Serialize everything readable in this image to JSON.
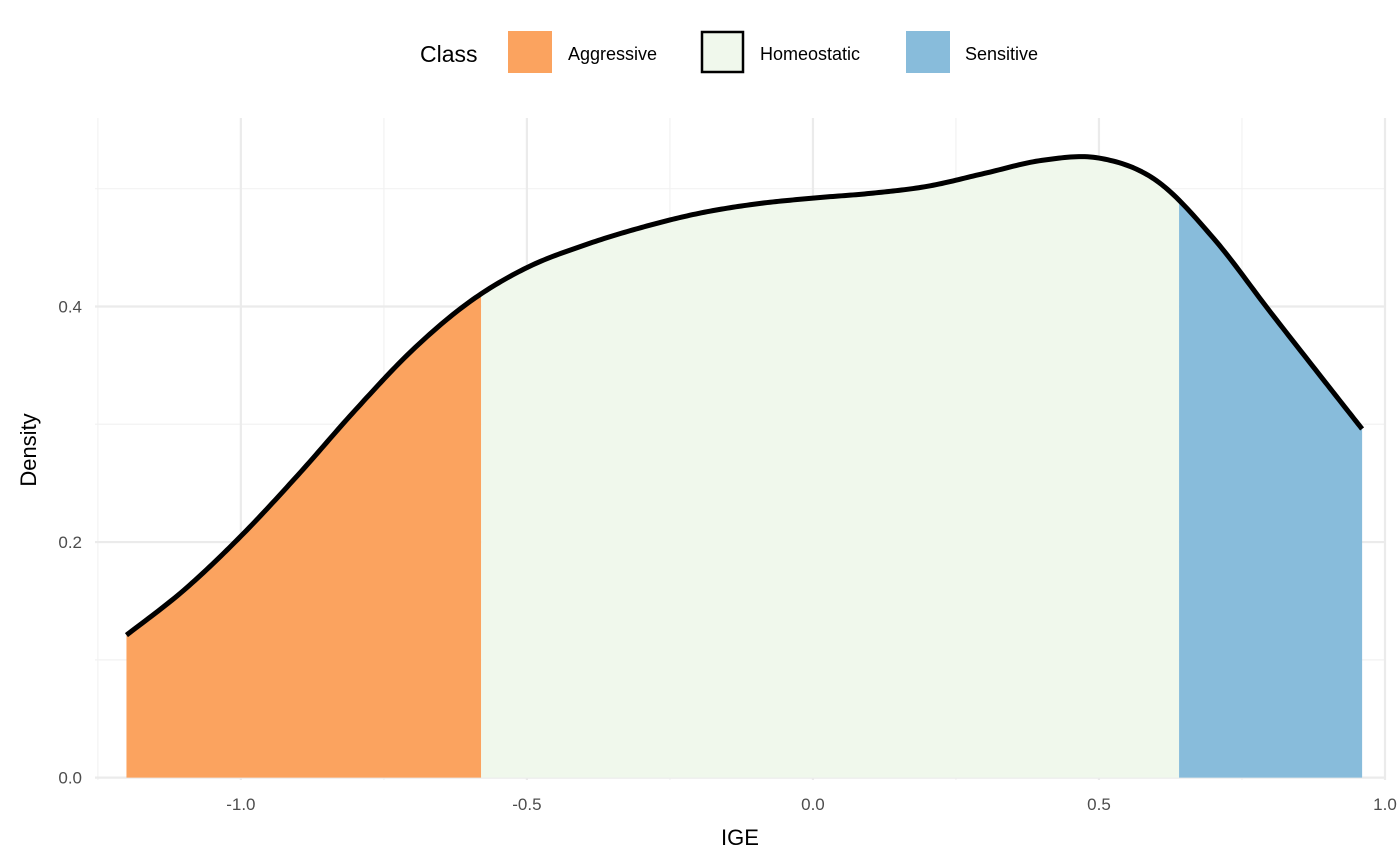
{
  "chart_data": {
    "type": "area",
    "title": "",
    "xlabel": "IGE",
    "ylabel": "Density",
    "xlim": [
      -1.255,
      1.0
    ],
    "ylim": [
      -0.002,
      0.56
    ],
    "x_ticks": [
      -1.0,
      -0.5,
      0.0,
      0.5,
      1.0
    ],
    "x_tick_labels": [
      "-1.0",
      "-0.5",
      "0.0",
      "0.5",
      "1.0"
    ],
    "y_ticks": [
      0.0,
      0.2,
      0.4
    ],
    "y_tick_labels": [
      "0.0",
      "0.2",
      "0.4"
    ],
    "grid": true,
    "legend": {
      "title": "Class",
      "position": "top",
      "entries": [
        {
          "name": "Aggressive",
          "color": "#FBA35F"
        },
        {
          "name": "Homeostatic",
          "color": "#F0F8EC"
        },
        {
          "name": "Sensitive",
          "color": "#88BCDB"
        }
      ]
    },
    "curve": {
      "x": [
        -1.2,
        -1.1,
        -1.0,
        -0.9,
        -0.8,
        -0.7,
        -0.6,
        -0.5,
        -0.4,
        -0.3,
        -0.2,
        -0.1,
        0.0,
        0.1,
        0.2,
        0.3,
        0.4,
        0.5,
        0.6,
        0.7,
        0.8,
        0.9,
        0.96
      ],
      "y": [
        0.121,
        0.159,
        0.205,
        0.257,
        0.312,
        0.363,
        0.404,
        0.433,
        0.452,
        0.467,
        0.479,
        0.487,
        0.492,
        0.496,
        0.502,
        0.513,
        0.524,
        0.526,
        0.507,
        0.458,
        0.395,
        0.333,
        0.296
      ]
    },
    "series": [
      {
        "name": "Aggressive",
        "x_range": [
          -1.2,
          -0.58
        ],
        "color": "#FBA35F"
      },
      {
        "name": "Homeostatic",
        "x_range": [
          -0.58,
          0.64
        ],
        "color": "#F0F8EC"
      },
      {
        "name": "Sensitive",
        "x_range": [
          0.64,
          0.96
        ],
        "color": "#88BCDB"
      }
    ]
  }
}
